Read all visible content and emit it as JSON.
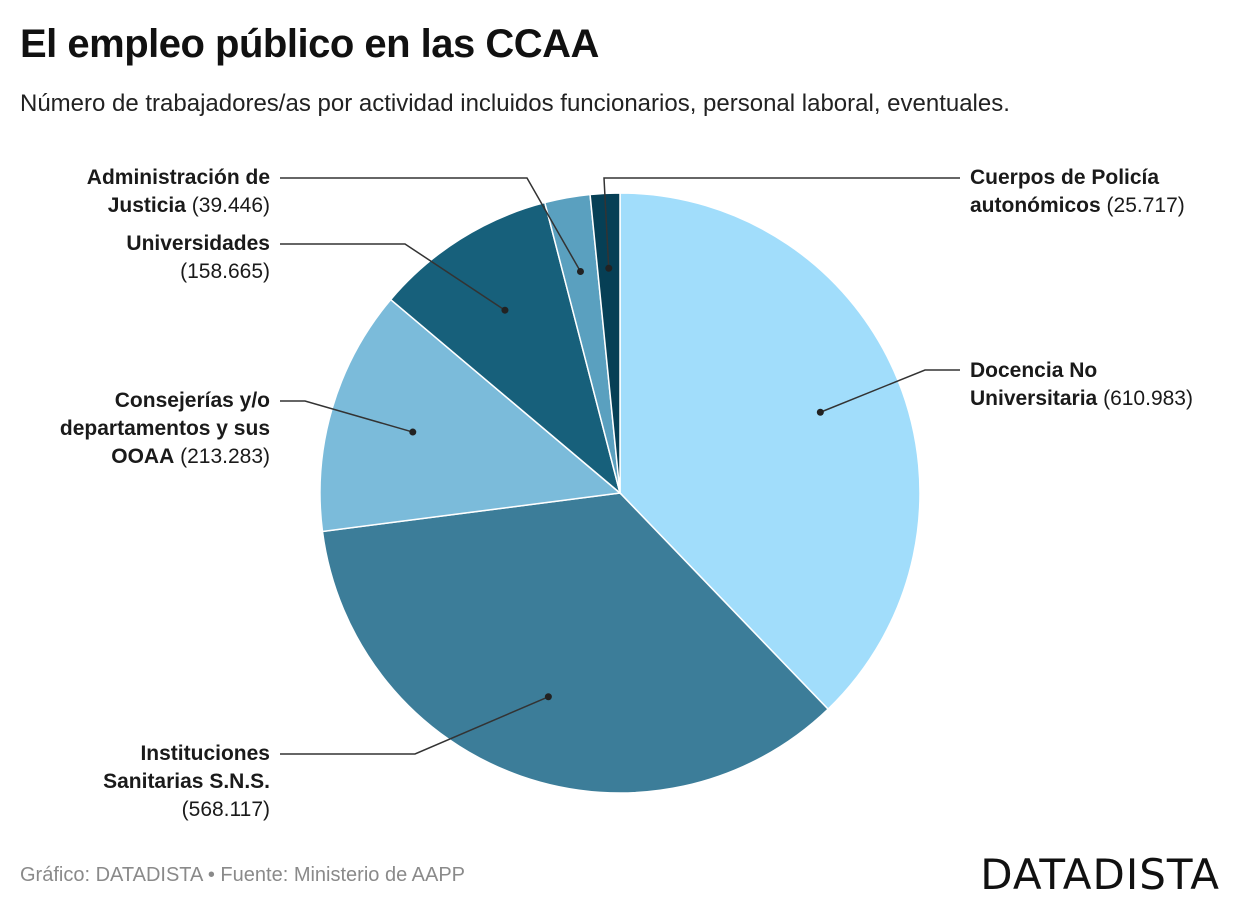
{
  "title": "El empleo público en las CCAA",
  "subtitle": "Número de trabajadores/as por actividad incluidos funcionarios, personal laboral, eventuales.",
  "footer": {
    "grafico_label": "Gráfico:",
    "grafico_value": "DATADISTA",
    "separator": "•",
    "fuente_label": "Fuente:",
    "fuente_value": "Ministerio de AAPP",
    "logo": "DATADISTA"
  },
  "chart_data": {
    "type": "pie",
    "start_angle_deg": 0,
    "direction": "clockwise",
    "slices": [
      {
        "name": "Docencia No Universitaria",
        "label_bold": "Docencia No Universitaria",
        "value": 610983,
        "display": "(610.983)",
        "color": "#a1ddfb"
      },
      {
        "name": "Instituciones Sanitarias S.N.S.",
        "label_bold": "Instituciones Sanitarias S.N.S.",
        "value": 568117,
        "display": "(568.117)",
        "color": "#3c7d99"
      },
      {
        "name": "Consejerías y/o departamentos y sus OOAA",
        "label_bold": "Consejerías y/o departamentos y sus OOAA",
        "value": 213283,
        "display": "(213.283)",
        "color": "#7bbbda"
      },
      {
        "name": "Universidades",
        "label_bold": "Universidades",
        "value": 158665,
        "display": "(158.665)",
        "color": "#17607b"
      },
      {
        "name": "Administración de Justicia",
        "label_bold": "Administración de Justicia",
        "value": 39446,
        "display": "(39.446)",
        "color": "#5aa0bf"
      },
      {
        "name": "Cuerpos de Policía autonómicos",
        "label_bold": "Cuerpos de Policía autonómicos",
        "value": 25717,
        "display": "(25.717)",
        "color": "#063f55"
      }
    ]
  }
}
